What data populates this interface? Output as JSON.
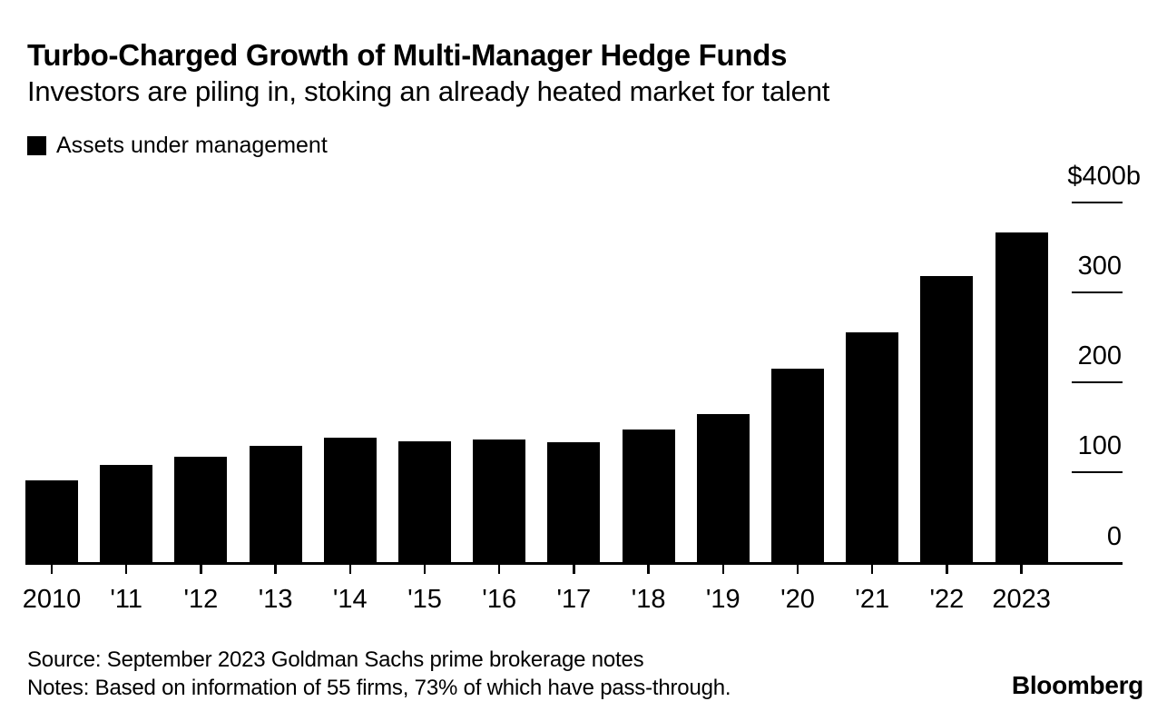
{
  "header": {
    "title": "Turbo-Charged Growth of Multi-Manager Hedge Funds",
    "subtitle": "Investors are piling in, stoking an already heated market for talent"
  },
  "legend": {
    "label": "Assets under management",
    "swatch_color": "#000000"
  },
  "chart_data": {
    "type": "bar",
    "title": "Turbo-Charged Growth of Multi-Manager Hedge Funds",
    "subtitle": "Investors are piling in, stoking an already heated market for talent",
    "series_name": "Assets under management",
    "categories": [
      "2010",
      "'11",
      "'12",
      "'13",
      "'14",
      "'15",
      "'16",
      "'17",
      "'18",
      "'19",
      "'20",
      "'21",
      "'22",
      "2023"
    ],
    "values": [
      92,
      109,
      118,
      130,
      139,
      135,
      137,
      134,
      148,
      166,
      216,
      257,
      319,
      368
    ],
    "unit": "billions USD",
    "xlabel": "",
    "ylabel": "",
    "ylim": [
      0,
      400
    ],
    "yticks": [
      {
        "value": 400,
        "label": "$400b"
      },
      {
        "value": 300,
        "label": "300"
      },
      {
        "value": 200,
        "label": "200"
      },
      {
        "value": 100,
        "label": "100"
      },
      {
        "value": 0,
        "label": "0"
      }
    ],
    "bar_color": "#000000",
    "background_color": "#ffffff",
    "grid": false,
    "tick_side": "right",
    "legend_position": "top-left"
  },
  "footer": {
    "source": "Source: September 2023 Goldman Sachs prime brokerage notes",
    "notes": "Notes: Based on information of 55 firms, 73% of which have pass-through.",
    "brand": "Bloomberg"
  }
}
